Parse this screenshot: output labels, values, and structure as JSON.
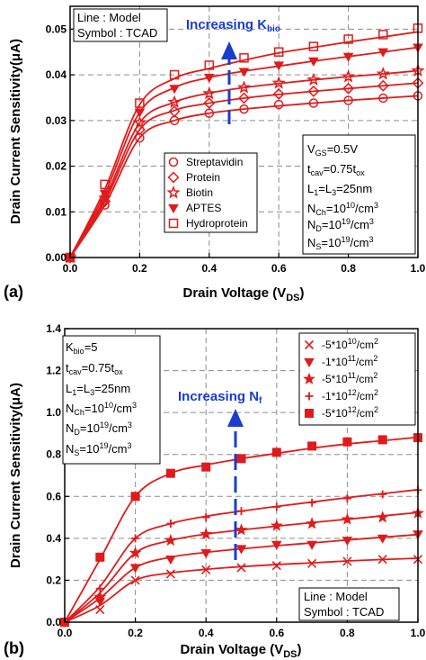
{
  "chart_data": [
    {
      "panel_label": "(a)",
      "type": "line",
      "xlabel": "Drain Voltage (V_DS)",
      "ylabel": "Drain Current Sensitivity(μA)",
      "xlim": [
        0,
        1.0
      ],
      "ylim": [
        0,
        0.055
      ],
      "xticks": [
        "0.0",
        "0.2",
        "0.4",
        "0.6",
        "0.8",
        "1.0"
      ],
      "yticks": [
        "0.00",
        "0.01",
        "0.02",
        "0.03",
        "0.04",
        "0.05"
      ],
      "grid": true,
      "info_box_top": [
        "Line : Model",
        "Symbol : TCAD"
      ],
      "annotation": "Increasing K_bio",
      "param_box": [
        "V_GS=0.5V",
        "t_cav=0.75t_ox",
        "L_1=L_3=25nm",
        "N_Ch=10^10/cm^3",
        "N_D=10^19/cm^3",
        "N_S=10^19/cm^3"
      ],
      "legend_placement": "center",
      "x": [
        0,
        0.1,
        0.2,
        0.3,
        0.4,
        0.5,
        0.6,
        0.7,
        0.8,
        0.9,
        1.0
      ],
      "series": [
        {
          "name": "Streptavidin",
          "marker": "circle",
          "values": [
            0,
            0.0115,
            0.0262,
            0.03,
            0.0316,
            0.0325,
            0.0332,
            0.0338,
            0.0344,
            0.0349,
            0.0354
          ]
        },
        {
          "name": "Protein",
          "marker": "diamond",
          "values": [
            0,
            0.0123,
            0.028,
            0.0322,
            0.0338,
            0.0349,
            0.0357,
            0.0364,
            0.037,
            0.0376,
            0.0382
          ]
        },
        {
          "name": "Biotin",
          "marker": "star",
          "values": [
            0,
            0.013,
            0.0295,
            0.034,
            0.036,
            0.0372,
            0.0381,
            0.0389,
            0.0396,
            0.0402,
            0.0409
          ]
        },
        {
          "name": "APTES",
          "marker": "triangle-down",
          "values": [
            0,
            0.014,
            0.0318,
            0.0372,
            0.0394,
            0.0408,
            0.0419,
            0.043,
            0.044,
            0.045,
            0.046
          ]
        },
        {
          "name": "Hydroprotein",
          "marker": "square",
          "values": [
            0,
            0.015,
            0.0335,
            0.0392,
            0.0414,
            0.0432,
            0.0448,
            0.046,
            0.0472,
            0.0483,
            0.0494
          ]
        }
      ],
      "tcad_points": [
        {
          "series": "Streptavidin",
          "values": [
            0,
            0.0115,
            0.0262,
            0.03,
            0.0316,
            0.0325,
            0.0335,
            0.0338,
            0.0344,
            0.0349,
            0.0354
          ]
        },
        {
          "series": "Protein",
          "values": [
            0,
            0.0123,
            0.028,
            0.032,
            0.0338,
            0.0349,
            0.0358,
            0.0364,
            0.037,
            0.0376,
            0.0382
          ]
        },
        {
          "series": "Biotin",
          "values": [
            0,
            0.013,
            0.0295,
            0.034,
            0.0359,
            0.0372,
            0.0382,
            0.0389,
            0.0396,
            0.0402,
            0.0409
          ]
        },
        {
          "series": "APTES",
          "values": [
            0,
            0.014,
            0.0318,
            0.037,
            0.0394,
            0.0407,
            0.0421,
            0.043,
            0.044,
            0.045,
            0.046
          ]
        },
        {
          "series": "Hydroprotein",
          "values": [
            0,
            0.016,
            0.0338,
            0.04,
            0.0421,
            0.0437,
            0.045,
            0.0462,
            0.0478,
            0.0488,
            0.0502
          ]
        }
      ]
    },
    {
      "panel_label": "(b)",
      "type": "line",
      "xlabel": "Drain Voltage (V_DS)",
      "ylabel": "Drain Current Sensitivity(μA)",
      "xlim": [
        0,
        1.0
      ],
      "ylim": [
        0,
        1.4
      ],
      "xticks": [
        "0.0",
        "0.2",
        "0.4",
        "0.6",
        "0.8",
        "1.0"
      ],
      "yticks": [
        "0.0",
        "0.2",
        "0.4",
        "0.6",
        "0.8",
        "1.0",
        "1.2",
        "1.4"
      ],
      "grid": true,
      "info_box_bottom": [
        "Line : Model",
        "Symbol : TCAD"
      ],
      "annotation": "Increasing N_f",
      "param_box": [
        "K_bio=5",
        "t_cav=0.75t_ox",
        "L_1=L_3=25nm",
        "N_Ch=10^10/cm^3",
        "N_D=10^19/cm^3",
        "N_S=10^19/cm^3"
      ],
      "legend_placement": "top-right",
      "x": [
        0,
        0.1,
        0.2,
        0.3,
        0.4,
        0.5,
        0.6,
        0.7,
        0.8,
        0.9,
        1.0
      ],
      "series": [
        {
          "name": "-5*10^10/cm^2",
          "marker": "x",
          "values": [
            0,
            0.08,
            0.2,
            0.235,
            0.252,
            0.265,
            0.275,
            0.283,
            0.292,
            0.299,
            0.305
          ]
        },
        {
          "name": "-1*10^11/cm^2",
          "marker": "triangle-down",
          "values": [
            0,
            0.115,
            0.26,
            0.31,
            0.333,
            0.35,
            0.365,
            0.378,
            0.392,
            0.405,
            0.418
          ]
        },
        {
          "name": "-5*10^11/cm^2",
          "marker": "star",
          "values": [
            0,
            0.14,
            0.33,
            0.39,
            0.42,
            0.44,
            0.458,
            0.475,
            0.491,
            0.507,
            0.523
          ]
        },
        {
          "name": "-1*10^12/cm^2",
          "marker": "plus",
          "values": [
            0,
            0.17,
            0.4,
            0.47,
            0.505,
            0.53,
            0.552,
            0.573,
            0.594,
            0.613,
            0.632
          ]
        },
        {
          "name": "-5*10^12/cm^2",
          "marker": "square",
          "values": [
            0,
            0.3,
            0.6,
            0.71,
            0.75,
            0.78,
            0.805,
            0.83,
            0.85,
            0.866,
            0.882
          ]
        }
      ],
      "tcad_points": [
        {
          "series": "-5*10^10/cm^2",
          "values": [
            0,
            0.06,
            0.2,
            0.23,
            0.25,
            0.26,
            0.27,
            0.28,
            0.29,
            0.3,
            0.3
          ]
        },
        {
          "series": "-1*10^11/cm^2",
          "values": [
            0,
            0.1,
            0.26,
            0.3,
            0.33,
            0.35,
            0.37,
            0.37,
            0.39,
            0.4,
            0.42
          ]
        },
        {
          "series": "-5*10^11/cm^2",
          "values": [
            0,
            0.12,
            0.33,
            0.39,
            0.42,
            0.44,
            0.46,
            0.47,
            0.49,
            0.5,
            0.52
          ]
        },
        {
          "series": "-1*10^12/cm^2",
          "values": [
            0,
            0.16,
            0.4,
            0.47,
            0.5,
            0.53,
            0.55,
            0.57,
            0.59,
            0.61,
            0.63
          ]
        },
        {
          "series": "-5*10^12/cm^2",
          "values": [
            0,
            0.31,
            0.6,
            0.71,
            0.74,
            0.78,
            0.81,
            0.84,
            0.86,
            0.87,
            0.88
          ]
        }
      ]
    }
  ],
  "colors": {
    "curve": "#e01b1b",
    "arrow": "#1a3ccf",
    "grid": "#8c8c8c",
    "axis": "#000000"
  }
}
